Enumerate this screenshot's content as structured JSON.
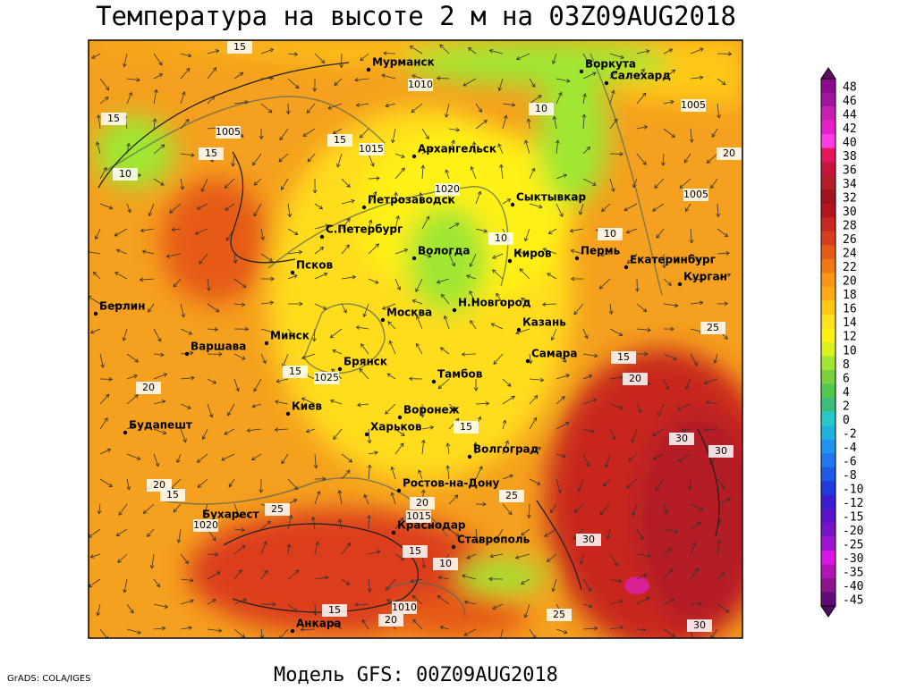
{
  "title": "Температура на высоте 2 м на 03Z09AUG2018",
  "footer": "Модель GFS: 00Z09AUG2018",
  "credit": "GrADS: COLA/IGES",
  "cities": [
    "Мурманск",
    "Воркута",
    "Салехард",
    "Архангельск",
    "Петрозаводск",
    "Сыктывкар",
    "С.Петербург",
    "Вологда",
    "Киров",
    "Пермь",
    "Екатеринбург",
    "Курган",
    "Псков",
    "Берлин",
    "Москва",
    "Н.Новгород",
    "Казань",
    "Минск",
    "Варшава",
    "Самара",
    "Брянск",
    "Тамбов",
    "Киев",
    "Воронеж",
    "Будапешт",
    "Харьков",
    "Волгоград",
    "Ростов-на-Дону",
    "Бухарест",
    "Краснодар",
    "Ставрополь",
    "Анкара"
  ],
  "isobar_labels": [
    1010,
    1005,
    1015,
    1020,
    1005,
    1005,
    1025,
    1015,
    1020,
    1010
  ],
  "isotherm_labels": [
    15,
    15,
    10,
    15,
    15,
    10,
    10,
    10,
    20,
    25,
    15,
    20,
    30,
    30,
    20,
    20,
    15,
    25,
    20,
    25,
    30,
    10,
    15,
    30,
    25,
    15,
    20,
    15,
    15
  ],
  "colorbar": {
    "levels": [
      48,
      46,
      44,
      42,
      40,
      38,
      36,
      34,
      32,
      30,
      28,
      26,
      24,
      22,
      20,
      18,
      16,
      14,
      12,
      10,
      8,
      6,
      4,
      2,
      0,
      -2,
      -4,
      -6,
      -8,
      -10,
      -12,
      -15,
      -20,
      -25,
      -30,
      -35,
      -40,
      -45
    ],
    "colors": [
      "#8c0a8c",
      "#a0149f",
      "#c81eb4",
      "#e61ec8",
      "#ff3ce6",
      "#e6145a",
      "#c8143c",
      "#b41e28",
      "#a0141e",
      "#b4141e",
      "#c8281e",
      "#dc3c1e",
      "#e65a14",
      "#f07814",
      "#fa9614",
      "#ffaa14",
      "#ffc814",
      "#ffe11e",
      "#fff014",
      "#dcf01e",
      "#a0e632",
      "#78d23c",
      "#50c850",
      "#3cbe78",
      "#28c8c8",
      "#1eb4dc",
      "#1e96f0",
      "#1e78f0",
      "#1e5ae6",
      "#1e3cdc",
      "#3c1ed2",
      "#5a14c8",
      "#7814c8",
      "#a014d2",
      "#dc14e6",
      "#b414b4",
      "#8c148c",
      "#640a78"
    ]
  }
}
